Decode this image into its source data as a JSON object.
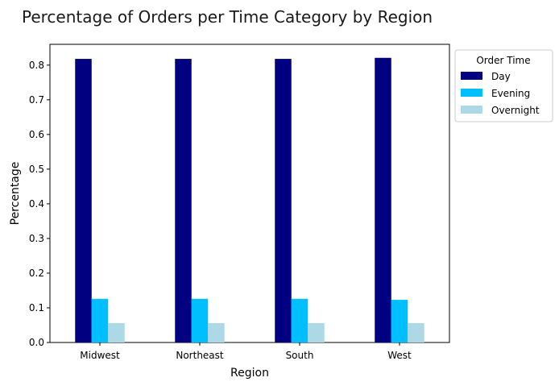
{
  "chart_data": {
    "type": "bar",
    "title": "Percentage of Orders per Time Category by Region",
    "xlabel": "Region",
    "ylabel": "Percentage",
    "categories": [
      "Midwest",
      "Northeast",
      "South",
      "West"
    ],
    "series": [
      {
        "name": "Day",
        "color": "#000080",
        "values": [
          0.818,
          0.818,
          0.818,
          0.821
        ]
      },
      {
        "name": "Evening",
        "color": "#00bfff",
        "values": [
          0.126,
          0.126,
          0.126,
          0.123
        ]
      },
      {
        "name": "Overnight",
        "color": "#add8e6",
        "values": [
          0.056,
          0.056,
          0.056,
          0.056
        ]
      }
    ],
    "ylim": [
      0,
      0.86
    ],
    "yticks": [
      "0.0",
      "0.1",
      "0.2",
      "0.3",
      "0.4",
      "0.5",
      "0.6",
      "0.7",
      "0.8"
    ],
    "legend": {
      "title": "Order Time",
      "placement": "outside right, top"
    },
    "grid": false
  }
}
